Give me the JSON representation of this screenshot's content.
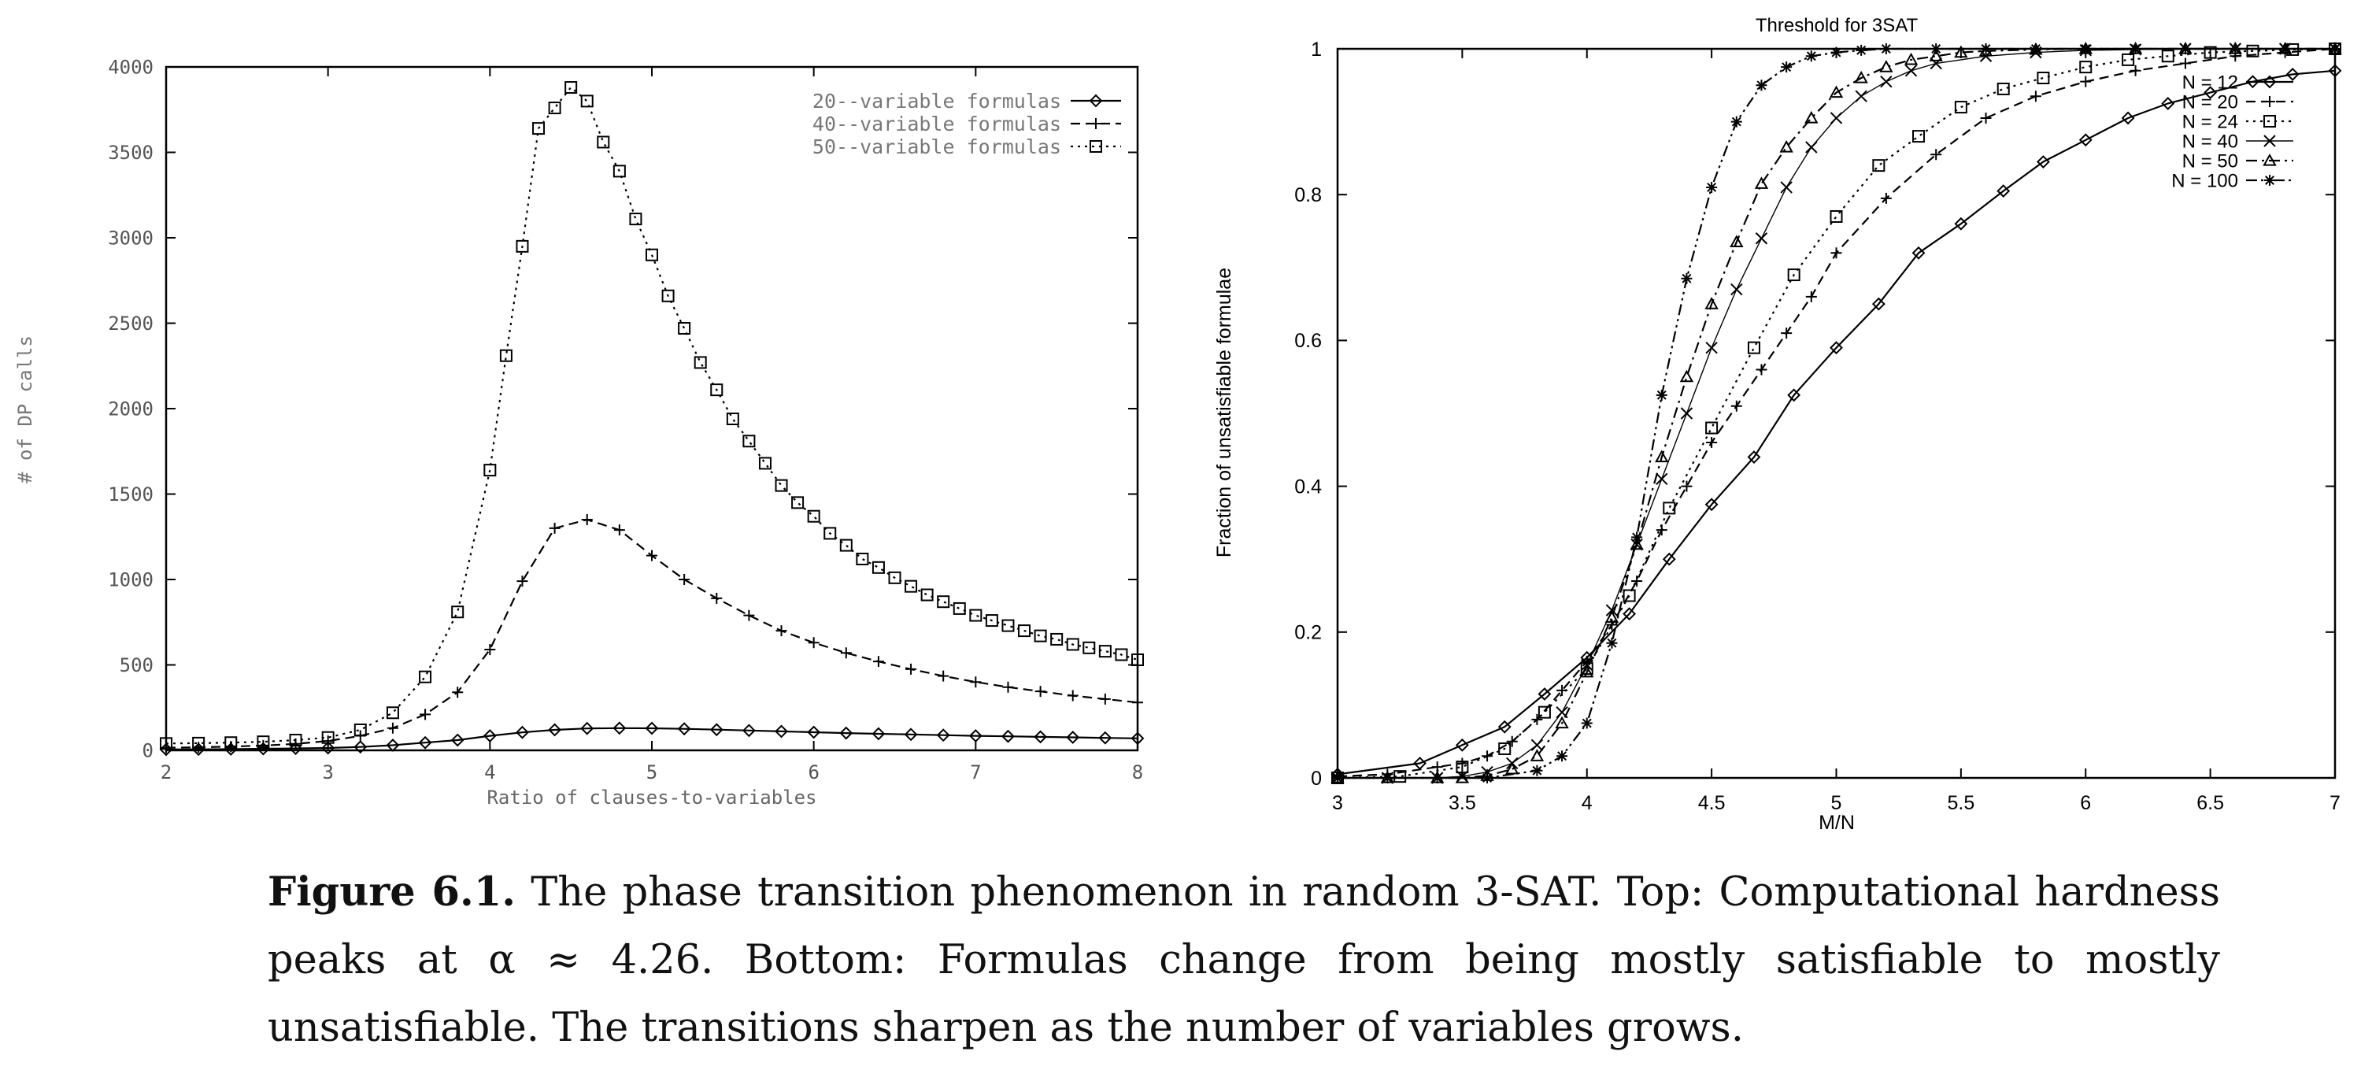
{
  "chart_data": [
    {
      "type": "line",
      "title": "",
      "xlabel": "Ratio of clauses-to-variables",
      "ylabel": "# of DP calls",
      "xlim": [
        2,
        8
      ],
      "ylim": [
        0,
        4000
      ],
      "xticks": [
        "2",
        "3",
        "4",
        "5",
        "6",
        "7",
        "8"
      ],
      "yticks": [
        "0",
        "500",
        "1000",
        "1500",
        "2000",
        "2500",
        "3000",
        "3500",
        "4000"
      ],
      "grid": false,
      "legend_position": "top-right",
      "series": [
        {
          "name": "20--variable formulas",
          "marker": "diamond",
          "dash": "solid",
          "x": [
            2.0,
            2.2,
            2.4,
            2.6,
            2.8,
            3.0,
            3.2,
            3.4,
            3.6,
            3.8,
            4.0,
            4.2,
            4.4,
            4.6,
            4.8,
            5.0,
            5.2,
            5.4,
            5.6,
            5.8,
            6.0,
            6.2,
            6.4,
            6.6,
            6.8,
            7.0,
            7.2,
            7.4,
            7.6,
            7.8,
            8.0
          ],
          "y": [
            5,
            6,
            7,
            9,
            11,
            14,
            20,
            30,
            45,
            60,
            85,
            105,
            120,
            128,
            130,
            129,
            126,
            121,
            116,
            111,
            106,
            101,
            97,
            93,
            89,
            85,
            82,
            79,
            76,
            73,
            70
          ]
        },
        {
          "name": "40--variable formulas",
          "marker": "plus",
          "dash": "dashed",
          "x": [
            2.0,
            2.2,
            2.4,
            2.6,
            2.8,
            3.0,
            3.2,
            3.4,
            3.6,
            3.8,
            4.0,
            4.2,
            4.4,
            4.6,
            4.8,
            5.0,
            5.2,
            5.4,
            5.6,
            5.8,
            6.0,
            6.2,
            6.4,
            6.6,
            6.8,
            7.0,
            7.2,
            7.4,
            7.6,
            7.8,
            8.0
          ],
          "y": [
            15,
            18,
            22,
            28,
            38,
            55,
            85,
            130,
            210,
            340,
            590,
            990,
            1300,
            1350,
            1290,
            1140,
            1000,
            890,
            790,
            700,
            630,
            570,
            520,
            475,
            435,
            400,
            370,
            345,
            320,
            300,
            280
          ]
        },
        {
          "name": "50--variable formulas",
          "marker": "square",
          "dash": "dotted",
          "x": [
            2.0,
            2.2,
            2.4,
            2.6,
            2.8,
            3.0,
            3.2,
            3.4,
            3.6,
            3.8,
            4.0,
            4.1,
            4.2,
            4.3,
            4.4,
            4.5,
            4.6,
            4.7,
            4.8,
            4.9,
            5.0,
            5.1,
            5.2,
            5.3,
            5.4,
            5.5,
            5.6,
            5.7,
            5.8,
            5.9,
            6.0,
            6.1,
            6.2,
            6.3,
            6.4,
            6.5,
            6.6,
            6.7,
            6.8,
            6.9,
            7.0,
            7.1,
            7.2,
            7.3,
            7.4,
            7.5,
            7.6,
            7.7,
            7.8,
            7.9,
            8.0
          ],
          "y": [
            40,
            42,
            45,
            50,
            60,
            75,
            120,
            220,
            430,
            810,
            1640,
            2310,
            2950,
            3640,
            3760,
            3880,
            3800,
            3560,
            3390,
            3110,
            2900,
            2660,
            2470,
            2270,
            2110,
            1940,
            1810,
            1680,
            1550,
            1450,
            1370,
            1270,
            1200,
            1120,
            1070,
            1010,
            960,
            910,
            870,
            830,
            790,
            760,
            730,
            700,
            670,
            650,
            620,
            600,
            580,
            560,
            530
          ]
        }
      ]
    },
    {
      "type": "line",
      "title": "Threshold for 3SAT",
      "xlabel": "M/N",
      "ylabel": "Fraction of unsatisfiable formulae",
      "xlim": [
        3,
        7
      ],
      "ylim": [
        0,
        1
      ],
      "xticks": [
        "3",
        "3.5",
        "4",
        "4.5",
        "5",
        "5.5",
        "6",
        "6.5",
        "7"
      ],
      "yticks": [
        "0",
        "0.2",
        "0.4",
        "0.6",
        "0.8",
        "1"
      ],
      "grid": false,
      "legend_position": "top-right",
      "series": [
        {
          "name": "N = 12",
          "marker": "diamond",
          "dash": "solid",
          "x": [
            3.0,
            3.33,
            3.5,
            3.67,
            3.83,
            4.0,
            4.17,
            4.33,
            4.5,
            4.67,
            4.83,
            5.0,
            5.17,
            5.33,
            5.5,
            5.67,
            5.83,
            6.0,
            6.17,
            6.33,
            6.5,
            6.67,
            6.83,
            7.0
          ],
          "y": [
            0.005,
            0.02,
            0.045,
            0.07,
            0.115,
            0.165,
            0.225,
            0.3,
            0.375,
            0.44,
            0.525,
            0.59,
            0.65,
            0.72,
            0.76,
            0.805,
            0.845,
            0.875,
            0.905,
            0.925,
            0.94,
            0.955,
            0.965,
            0.97
          ]
        },
        {
          "name": "N = 20",
          "marker": "plus",
          "dash": "dashed",
          "x": [
            3.0,
            3.2,
            3.4,
            3.5,
            3.6,
            3.7,
            3.8,
            3.9,
            4.0,
            4.1,
            4.2,
            4.3,
            4.4,
            4.5,
            4.6,
            4.7,
            4.8,
            4.9,
            5.0,
            5.2,
            5.4,
            5.6,
            5.8,
            6.0,
            6.2,
            6.4,
            6.6,
            6.8,
            7.0
          ],
          "y": [
            0.002,
            0.005,
            0.015,
            0.02,
            0.03,
            0.05,
            0.08,
            0.12,
            0.16,
            0.21,
            0.27,
            0.34,
            0.4,
            0.46,
            0.51,
            0.56,
            0.61,
            0.66,
            0.72,
            0.795,
            0.855,
            0.905,
            0.935,
            0.955,
            0.97,
            0.98,
            0.99,
            0.995,
            1.0
          ]
        },
        {
          "name": "N = 24",
          "marker": "square",
          "dash": "dotted",
          "x": [
            3.0,
            3.25,
            3.5,
            3.67,
            3.83,
            4.0,
            4.17,
            4.33,
            4.5,
            4.67,
            4.83,
            5.0,
            5.17,
            5.33,
            5.5,
            5.67,
            5.83,
            6.0,
            6.17,
            6.33,
            6.5,
            6.67,
            6.83,
            7.0
          ],
          "y": [
            0.0,
            0.002,
            0.015,
            0.04,
            0.09,
            0.15,
            0.25,
            0.37,
            0.48,
            0.59,
            0.69,
            0.77,
            0.84,
            0.88,
            0.92,
            0.945,
            0.96,
            0.975,
            0.985,
            0.99,
            0.995,
            0.997,
            0.999,
            1.0
          ]
        },
        {
          "name": "N = 40",
          "marker": "cross",
          "dash": "solid-thin",
          "x": [
            3.0,
            3.2,
            3.4,
            3.5,
            3.6,
            3.7,
            3.8,
            3.9,
            4.0,
            4.1,
            4.2,
            4.3,
            4.4,
            4.5,
            4.6,
            4.7,
            4.8,
            4.9,
            5.0,
            5.1,
            5.2,
            5.3,
            5.4,
            5.6,
            5.8,
            6.0,
            6.2,
            6.4,
            6.6,
            6.8,
            7.0
          ],
          "y": [
            0.0,
            0.0,
            0.0,
            0.002,
            0.008,
            0.02,
            0.045,
            0.09,
            0.155,
            0.23,
            0.32,
            0.41,
            0.5,
            0.59,
            0.67,
            0.74,
            0.81,
            0.865,
            0.905,
            0.935,
            0.955,
            0.97,
            0.98,
            0.99,
            0.995,
            0.998,
            0.999,
            1.0,
            1.0,
            1.0,
            1.0
          ]
        },
        {
          "name": "N = 50",
          "marker": "triangle",
          "dash": "dashdot",
          "x": [
            3.0,
            3.2,
            3.4,
            3.5,
            3.6,
            3.7,
            3.8,
            3.9,
            4.0,
            4.1,
            4.2,
            4.3,
            4.4,
            4.5,
            4.6,
            4.7,
            4.8,
            4.9,
            5.0,
            5.1,
            5.2,
            5.3,
            5.4,
            5.5,
            5.6,
            5.8,
            6.0,
            6.2,
            6.4,
            6.6,
            6.8,
            7.0
          ],
          "y": [
            0.0,
            0.0,
            0.0,
            0.0,
            0.003,
            0.012,
            0.03,
            0.075,
            0.145,
            0.22,
            0.32,
            0.44,
            0.55,
            0.65,
            0.735,
            0.815,
            0.865,
            0.905,
            0.94,
            0.96,
            0.975,
            0.985,
            0.99,
            0.995,
            0.997,
            0.999,
            1.0,
            1.0,
            1.0,
            1.0,
            1.0,
            1.0
          ]
        },
        {
          "name": "N = 100",
          "marker": "star",
          "dash": "dashdotdot",
          "x": [
            3.0,
            3.2,
            3.4,
            3.6,
            3.8,
            3.9,
            4.0,
            4.1,
            4.2,
            4.3,
            4.4,
            4.5,
            4.6,
            4.7,
            4.8,
            4.9,
            5.0,
            5.1,
            5.2,
            5.4,
            5.6,
            5.8,
            6.0,
            6.2,
            6.4,
            6.6,
            6.8,
            7.0
          ],
          "y": [
            0.0,
            0.0,
            0.0,
            0.0,
            0.01,
            0.03,
            0.075,
            0.185,
            0.33,
            0.525,
            0.685,
            0.81,
            0.9,
            0.95,
            0.975,
            0.99,
            0.995,
            0.998,
            1.0,
            1.0,
            1.0,
            1.0,
            1.0,
            1.0,
            1.0,
            1.0,
            1.0,
            1.0
          ]
        }
      ]
    }
  ],
  "caption": {
    "label": "Figure 6.1.",
    "text": "The phase transition phenomenon in random 3-SAT. Top: Computational hardness peaks at α ≈ 4.26.  Bottom: Formulas change from being mostly satisfiable to mostly unsatisfiable. The transitions sharpen as the number of variables grows."
  }
}
